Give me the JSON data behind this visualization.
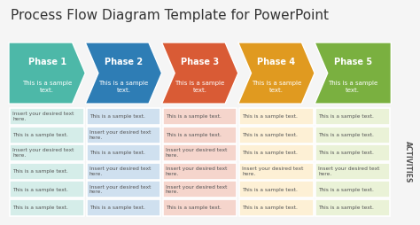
{
  "title": "Process Flow Diagram Template for PowerPoint",
  "title_fontsize": 11,
  "title_color": "#333333",
  "background_color": "#f5f5f5",
  "phases": [
    "Phase 1",
    "Phase 2",
    "Phase 3",
    "Phase 4",
    "Phase 5"
  ],
  "phase_colors": [
    "#4db8a8",
    "#2e7db5",
    "#d95b35",
    "#e09a20",
    "#7ab040"
  ],
  "phase_subtitle": "This is a sample\ntext.",
  "cell_texts": [
    [
      "Insert your desired text\nhere.",
      "This is a sample text.",
      "This is a sample text.",
      "This is a sample text.",
      "This is a sample text."
    ],
    [
      "This is a sample text.",
      "Insert your desired text\nhere.",
      "This is a sample text.",
      "This is a sample text.",
      "This is a sample text."
    ],
    [
      "Insert your desired text\nhere.",
      "This is a sample text.",
      "Insert your desired text\nhere.",
      "This is a sample text.",
      "This is a sample text."
    ],
    [
      "This is a sample text.",
      "Insert your desired text\nhere.",
      "Insert your desired text\nhere.",
      "Insert your desired text\nhere.",
      "Insert your desired text\nhere."
    ],
    [
      "This is a sample text.",
      "Insert your desired text\nhere.",
      "Insert your desired text\nhere.",
      "This is a sample text.",
      "This is a sample text."
    ],
    [
      "This is a sample text.",
      "This is a sample text.",
      "This is a sample text.",
      "This is a sample text.",
      "This is a sample text."
    ]
  ],
  "cell_bg_colors": [
    "#d5ede9",
    "#cfe0ef",
    "#f5d5cc",
    "#fdf0d5",
    "#eaf2d7"
  ],
  "cell_border_color": "#ffffff",
  "activities_label": "ACTIVITIES",
  "phase_label_fontsize": 7,
  "phase_sub_fontsize": 5,
  "cell_fontsize": 4.2,
  "activities_fontsize": 5.5
}
